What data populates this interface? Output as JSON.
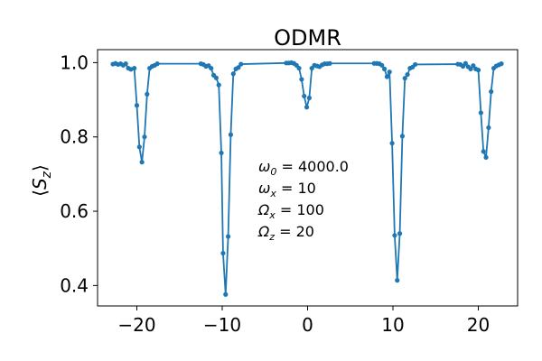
{
  "chart_data": {
    "type": "line",
    "title": "ODMR",
    "xlabel": "",
    "ylabel": "⟨S_z⟩",
    "xlim": [
      -24.6,
      24.6
    ],
    "ylim": [
      0.345,
      1.035
    ],
    "xticks": [
      -20,
      -10,
      0,
      10,
      20
    ],
    "xtick_labels": [
      "−20",
      "−10",
      "0",
      "10",
      "20"
    ],
    "yticks": [
      0.4,
      0.6,
      0.8,
      1.0
    ],
    "ytick_labels": [
      "0.4",
      "0.6",
      "0.8",
      "1.0"
    ],
    "color": "#1f77b4",
    "grid": false,
    "annotation": [
      {
        "sym": "ω",
        "sub": "0",
        "value": "= 4000.0"
      },
      {
        "sym": "ω",
        "sub": "x",
        "value": "= 10"
      },
      {
        "sym": "Ω",
        "sub": "x",
        "value": "= 100"
      },
      {
        "sym": "Ω",
        "sub": "z",
        "value": "= 20"
      }
    ],
    "series": [
      {
        "x": [
          -22.8,
          -22.5,
          -22.2,
          -21.9,
          -21.6,
          -21.3,
          -21.0,
          -20.7,
          -20.3,
          -20.0,
          -19.7,
          -19.4,
          -19.1,
          -18.8,
          -18.5,
          -18.2,
          -17.9,
          -17.6,
          -12.5,
          -12.2,
          -11.9,
          -11.6,
          -11.3,
          -11.0,
          -10.7,
          -10.4,
          -10.1,
          -9.9,
          -9.6,
          -9.3,
          -9.0,
          -8.7,
          -8.4,
          -8.1,
          -7.8,
          -2.5,
          -2.2,
          -1.9,
          -1.6,
          -1.3,
          -1.0,
          -0.7,
          -0.4,
          -0.1,
          0.2,
          0.5,
          0.8,
          1.1,
          1.4,
          1.7,
          2.0,
          2.3,
          2.6,
          7.8,
          8.1,
          8.4,
          8.7,
          9.0,
          9.3,
          9.6,
          9.9,
          10.2,
          10.5,
          10.8,
          11.1,
          11.4,
          11.7,
          12.0,
          12.3,
          12.6,
          17.6,
          17.9,
          18.2,
          18.5,
          18.8,
          19.1,
          19.4,
          19.7,
          20.0,
          20.3,
          20.6,
          20.9,
          21.2,
          21.5,
          21.8,
          22.1,
          22.4,
          22.7
        ],
        "y": [
          0.996,
          0.998,
          0.995,
          0.997,
          0.993,
          0.997,
          0.985,
          0.982,
          0.985,
          0.885,
          0.773,
          0.732,
          0.8,
          0.915,
          0.985,
          0.99,
          0.993,
          0.997,
          0.997,
          0.995,
          0.99,
          0.992,
          0.985,
          0.966,
          0.959,
          0.94,
          0.757,
          0.487,
          0.376,
          0.532,
          0.806,
          0.97,
          0.983,
          0.987,
          0.996,
          0.999,
          0.999,
          1.0,
          0.998,
          0.993,
          0.985,
          0.955,
          0.91,
          0.88,
          0.905,
          0.985,
          0.993,
          0.991,
          0.989,
          0.994,
          0.997,
          0.997,
          0.998,
          0.998,
          0.998,
          0.997,
          0.993,
          0.983,
          0.962,
          0.975,
          0.783,
          0.535,
          0.414,
          0.54,
          0.802,
          0.958,
          0.968,
          0.985,
          0.988,
          0.995,
          0.996,
          0.995,
          0.99,
          0.998,
          0.989,
          0.983,
          0.992,
          0.983,
          0.98,
          0.865,
          0.761,
          0.745,
          0.825,
          0.922,
          0.985,
          0.991,
          0.994,
          0.997
        ]
      }
    ]
  }
}
